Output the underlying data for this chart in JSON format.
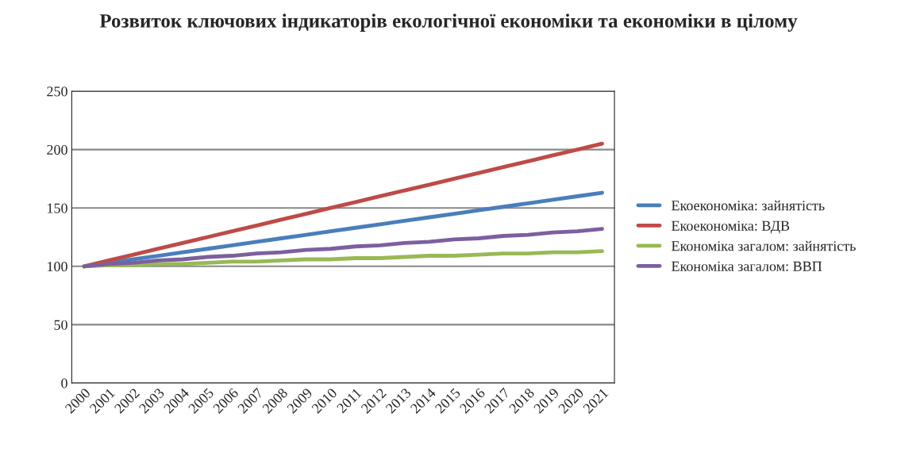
{
  "chart_data": {
    "type": "line",
    "title": "Розвиток ключових індикаторів екологічної економіки та економіки в цілому",
    "categories": [
      "2000",
      "2001",
      "2002",
      "2003",
      "2004",
      "2005",
      "2006",
      "2007",
      "2008",
      "2009",
      "2010",
      "2011",
      "2012",
      "2013",
      "2014",
      "2015",
      "2016",
      "2017",
      "2018",
      "2019",
      "2020",
      "2021"
    ],
    "series": [
      {
        "name": "Екоекономіка: зайнятість",
        "color": "#4a7ebb",
        "values": [
          100,
          103,
          106,
          109,
          112,
          115,
          118,
          121,
          124,
          127,
          130,
          133,
          136,
          139,
          142,
          145,
          148,
          151,
          154,
          157,
          160,
          163
        ]
      },
      {
        "name": "Екоекономіка: ВДВ",
        "color": "#be4b48",
        "values": [
          100,
          105,
          110,
          115,
          120,
          125,
          130,
          135,
          140,
          145,
          150,
          155,
          160,
          165,
          170,
          175,
          180,
          185,
          190,
          195,
          200,
          205
        ]
      },
      {
        "name": "Економіка загалом: зайнятість",
        "color": "#98b954",
        "values": [
          100,
          101,
          101,
          102,
          102,
          103,
          104,
          104,
          105,
          106,
          106,
          107,
          107,
          108,
          109,
          109,
          110,
          111,
          111,
          112,
          112,
          113
        ]
      },
      {
        "name": "Економіка загалом: ВВП",
        "color": "#7d5fa0",
        "values": [
          100,
          102,
          103,
          105,
          106,
          108,
          109,
          111,
          112,
          114,
          115,
          117,
          118,
          120,
          121,
          123,
          124,
          126,
          127,
          129,
          130,
          132
        ]
      }
    ],
    "ylim": [
      0,
      250
    ],
    "yticks": [
      0,
      50,
      100,
      150,
      200,
      250
    ],
    "grid": "y",
    "legend": "right",
    "marker": "none",
    "line_style": "solid"
  }
}
